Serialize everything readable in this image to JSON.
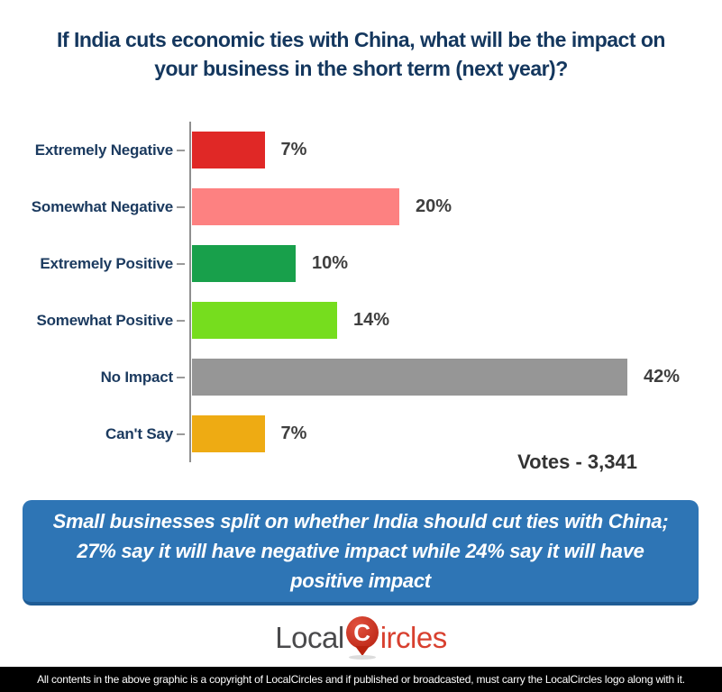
{
  "title": {
    "lines": [
      "If India cuts economic ties with China, what will be the impact on",
      "your business in the short term (next year)?"
    ]
  },
  "chart_data": {
    "type": "bar",
    "orientation": "horizontal",
    "title": "If India cuts economic ties with China, what will be the impact on your business in the short term (next year)?",
    "xlabel": "",
    "ylabel": "",
    "xlim": [
      0,
      45
    ],
    "grid": false,
    "categories": [
      "Extremely Negative",
      "Somewhat Negative",
      "Extremely Positive",
      "Somewhat Positive",
      "No Impact",
      "Can't Say"
    ],
    "values": [
      7,
      20,
      10,
      14,
      42,
      7
    ],
    "unit": "%",
    "bars": [
      {
        "label": "Extremely Negative",
        "value": 7,
        "display": "7%",
        "color": "#e02826"
      },
      {
        "label": "Somewhat Negative",
        "value": 20,
        "display": "20%",
        "color": "#fd8181"
      },
      {
        "label": "Extremely Positive",
        "value": 10,
        "display": "10%",
        "color": "#18a04b"
      },
      {
        "label": "Somewhat Positive",
        "value": 14,
        "display": "14%",
        "color": "#76dd1e"
      },
      {
        "label": "No Impact",
        "value": 42,
        "display": "42%",
        "color": "#969696"
      },
      {
        "label": "Can't Say",
        "value": 7,
        "display": "7%",
        "color": "#eeab13"
      }
    ],
    "votes_label": "Votes - 3,341"
  },
  "banner": {
    "bg_color": "#2e75b5",
    "text_color": "#ffffff",
    "lines": [
      "Small businesses split on whether India should cut ties with China;",
      "27% say it will have negative impact while 24% say it will have",
      "positive impact"
    ]
  },
  "logo": {
    "part1": "Local",
    "c": "C",
    "part2": "ircles",
    "text_color": "#4a4a4c",
    "accent_color": "#d8402f",
    "pin_color": "#b51f10"
  },
  "footer": {
    "text": "All contents in the above graphic is a copyright of LocalCircles and if published or broadcasted, must carry the LocalCircles logo along with it."
  }
}
